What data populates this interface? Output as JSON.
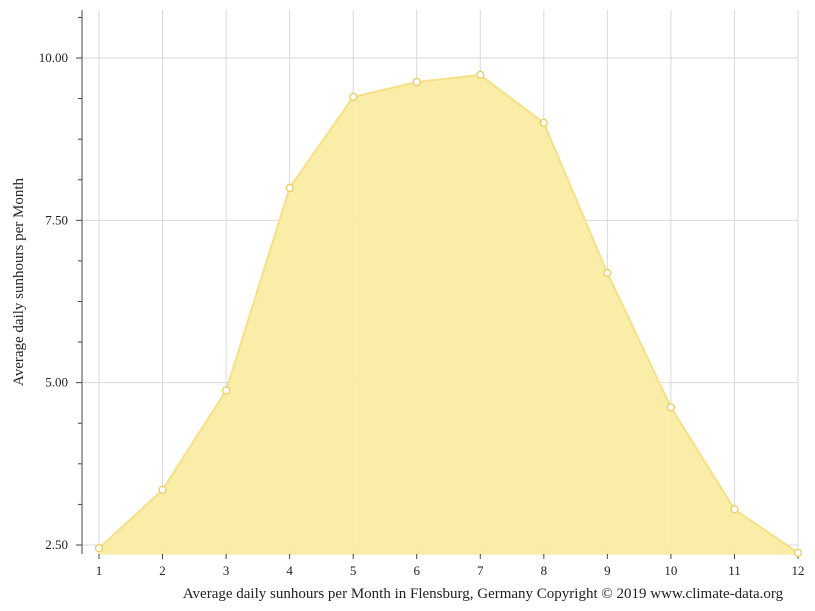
{
  "chart_data": {
    "type": "area",
    "title": "",
    "xlabel": "Average daily sunhours per Month in Flensburg, Germany Copyright © 2019 www.climate-data.org",
    "ylabel": "Average daily sunhours per Month",
    "categories": [
      "1",
      "2",
      "3",
      "4",
      "5",
      "6",
      "7",
      "8",
      "9",
      "10",
      "11",
      "12"
    ],
    "x": [
      1,
      2,
      3,
      4,
      5,
      6,
      7,
      8,
      9,
      10,
      11,
      12
    ],
    "values": [
      2.45,
      3.35,
      4.88,
      8.0,
      9.4,
      9.63,
      9.74,
      9.0,
      6.69,
      4.62,
      3.05,
      2.38
    ],
    "ylim": [
      2.35,
      10.75
    ],
    "yticks": [
      2.5,
      5.0,
      7.5,
      10.0
    ],
    "ytick_labels": [
      "2.50",
      "5.00",
      "7.50",
      "10.00"
    ],
    "grid": true,
    "legend": "none",
    "colors": {
      "fill": "#f9eca3",
      "line": "#f5e08a",
      "marker_fill": "#ffffff",
      "marker_stroke": "#e7cc5a",
      "grid": "#d9d9d9",
      "axis": "#444444"
    }
  }
}
